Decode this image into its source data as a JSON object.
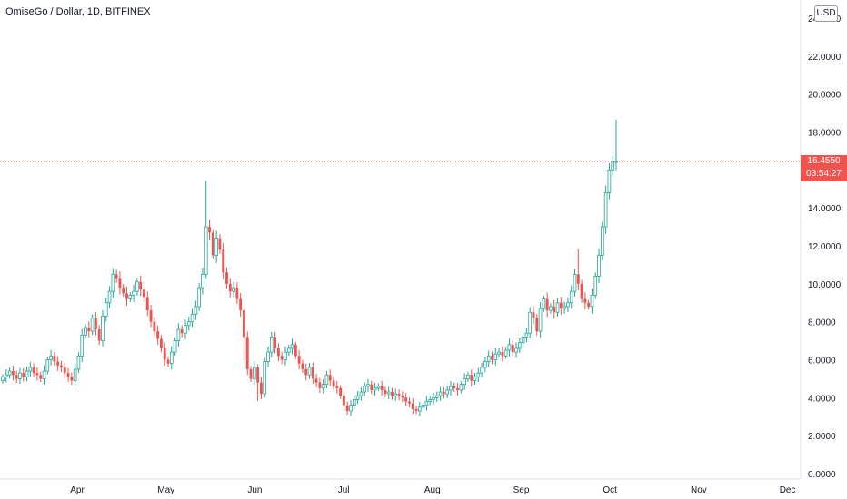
{
  "header": {
    "title": "OmiseGo / Dollar, 1D, BITFINEX",
    "currency": "USD"
  },
  "last_price": {
    "value": "16.4550",
    "countdown": "03:54:27"
  },
  "chart_data": {
    "type": "candlestick",
    "title": "OmiseGo / Dollar, 1D, BITFINEX",
    "y_ticks": [
      "0.0000",
      "2.0000",
      "4.0000",
      "6.0000",
      "8.0000",
      "10.0000",
      "12.0000",
      "14.0000",
      "16.0000",
      "18.0000",
      "20.0000",
      "22.0000",
      "24.0000"
    ],
    "x_ticks": [
      "Apr",
      "May",
      "Jun",
      "Jul",
      "Aug",
      "Sep",
      "Oct",
      "Nov",
      "Dec"
    ],
    "ylim": [
      0,
      24
    ],
    "last_price": 16.455,
    "up_color": "#26a69a",
    "down_color": "#ef5350",
    "series_close": [
      5.1,
      5.2,
      5.4,
      5.2,
      5.0,
      5.3,
      5.1,
      5.4,
      5.6,
      5.3,
      5.2,
      5.0,
      5.4,
      6.0,
      6.2,
      5.9,
      5.7,
      5.6,
      5.3,
      5.1,
      4.9,
      5.5,
      6.2,
      7.3,
      7.7,
      7.5,
      8.2,
      7.6,
      7.0,
      8.3,
      9.0,
      9.6,
      10.5,
      10.3,
      9.8,
      9.5,
      9.2,
      9.4,
      9.6,
      10.1,
      9.7,
      9.3,
      8.6,
      8.0,
      7.5,
      7.1,
      6.6,
      6.0,
      5.8,
      6.4,
      7.0,
      7.6,
      7.4,
      7.8,
      8.0,
      8.4,
      8.8,
      9.8,
      10.5,
      13.0,
      12.7,
      11.5,
      12.4,
      11.8,
      10.6,
      10.0,
      9.6,
      9.8,
      9.2,
      8.6,
      7.2,
      5.5,
      5.0,
      5.6,
      4.8,
      4.2,
      5.9,
      6.4,
      7.2,
      6.6,
      6.2,
      6.0,
      6.4,
      6.6,
      6.8,
      6.2,
      5.8,
      5.5,
      5.2,
      5.6,
      5.0,
      4.8,
      4.5,
      4.7,
      5.2,
      4.9,
      4.6,
      4.5,
      4.1,
      3.6,
      3.3,
      3.6,
      3.9,
      4.1,
      4.3,
      4.6,
      4.7,
      4.4,
      4.5,
      4.6,
      4.4,
      4.2,
      4.3,
      4.1,
      4.2,
      4.1,
      4.0,
      3.8,
      3.7,
      3.4,
      3.3,
      3.5,
      3.6,
      3.8,
      3.9,
      4.0,
      4.1,
      4.3,
      4.2,
      4.4,
      4.6,
      4.5,
      4.4,
      4.7,
      5.0,
      5.2,
      4.9,
      5.1,
      5.3,
      5.6,
      5.9,
      6.2,
      6.0,
      6.3,
      6.4,
      6.2,
      6.5,
      6.8,
      6.4,
      6.6,
      6.9,
      7.2,
      7.4,
      8.5,
      8.2,
      7.5,
      8.7,
      9.2,
      8.6,
      8.8,
      8.5,
      9.0,
      8.7,
      8.8,
      9.0,
      9.6,
      10.5,
      10.0,
      9.2,
      9.0,
      8.8,
      9.4,
      10.4,
      11.5,
      13.0,
      14.8,
      16.0,
      16.4,
      16.455
    ]
  }
}
